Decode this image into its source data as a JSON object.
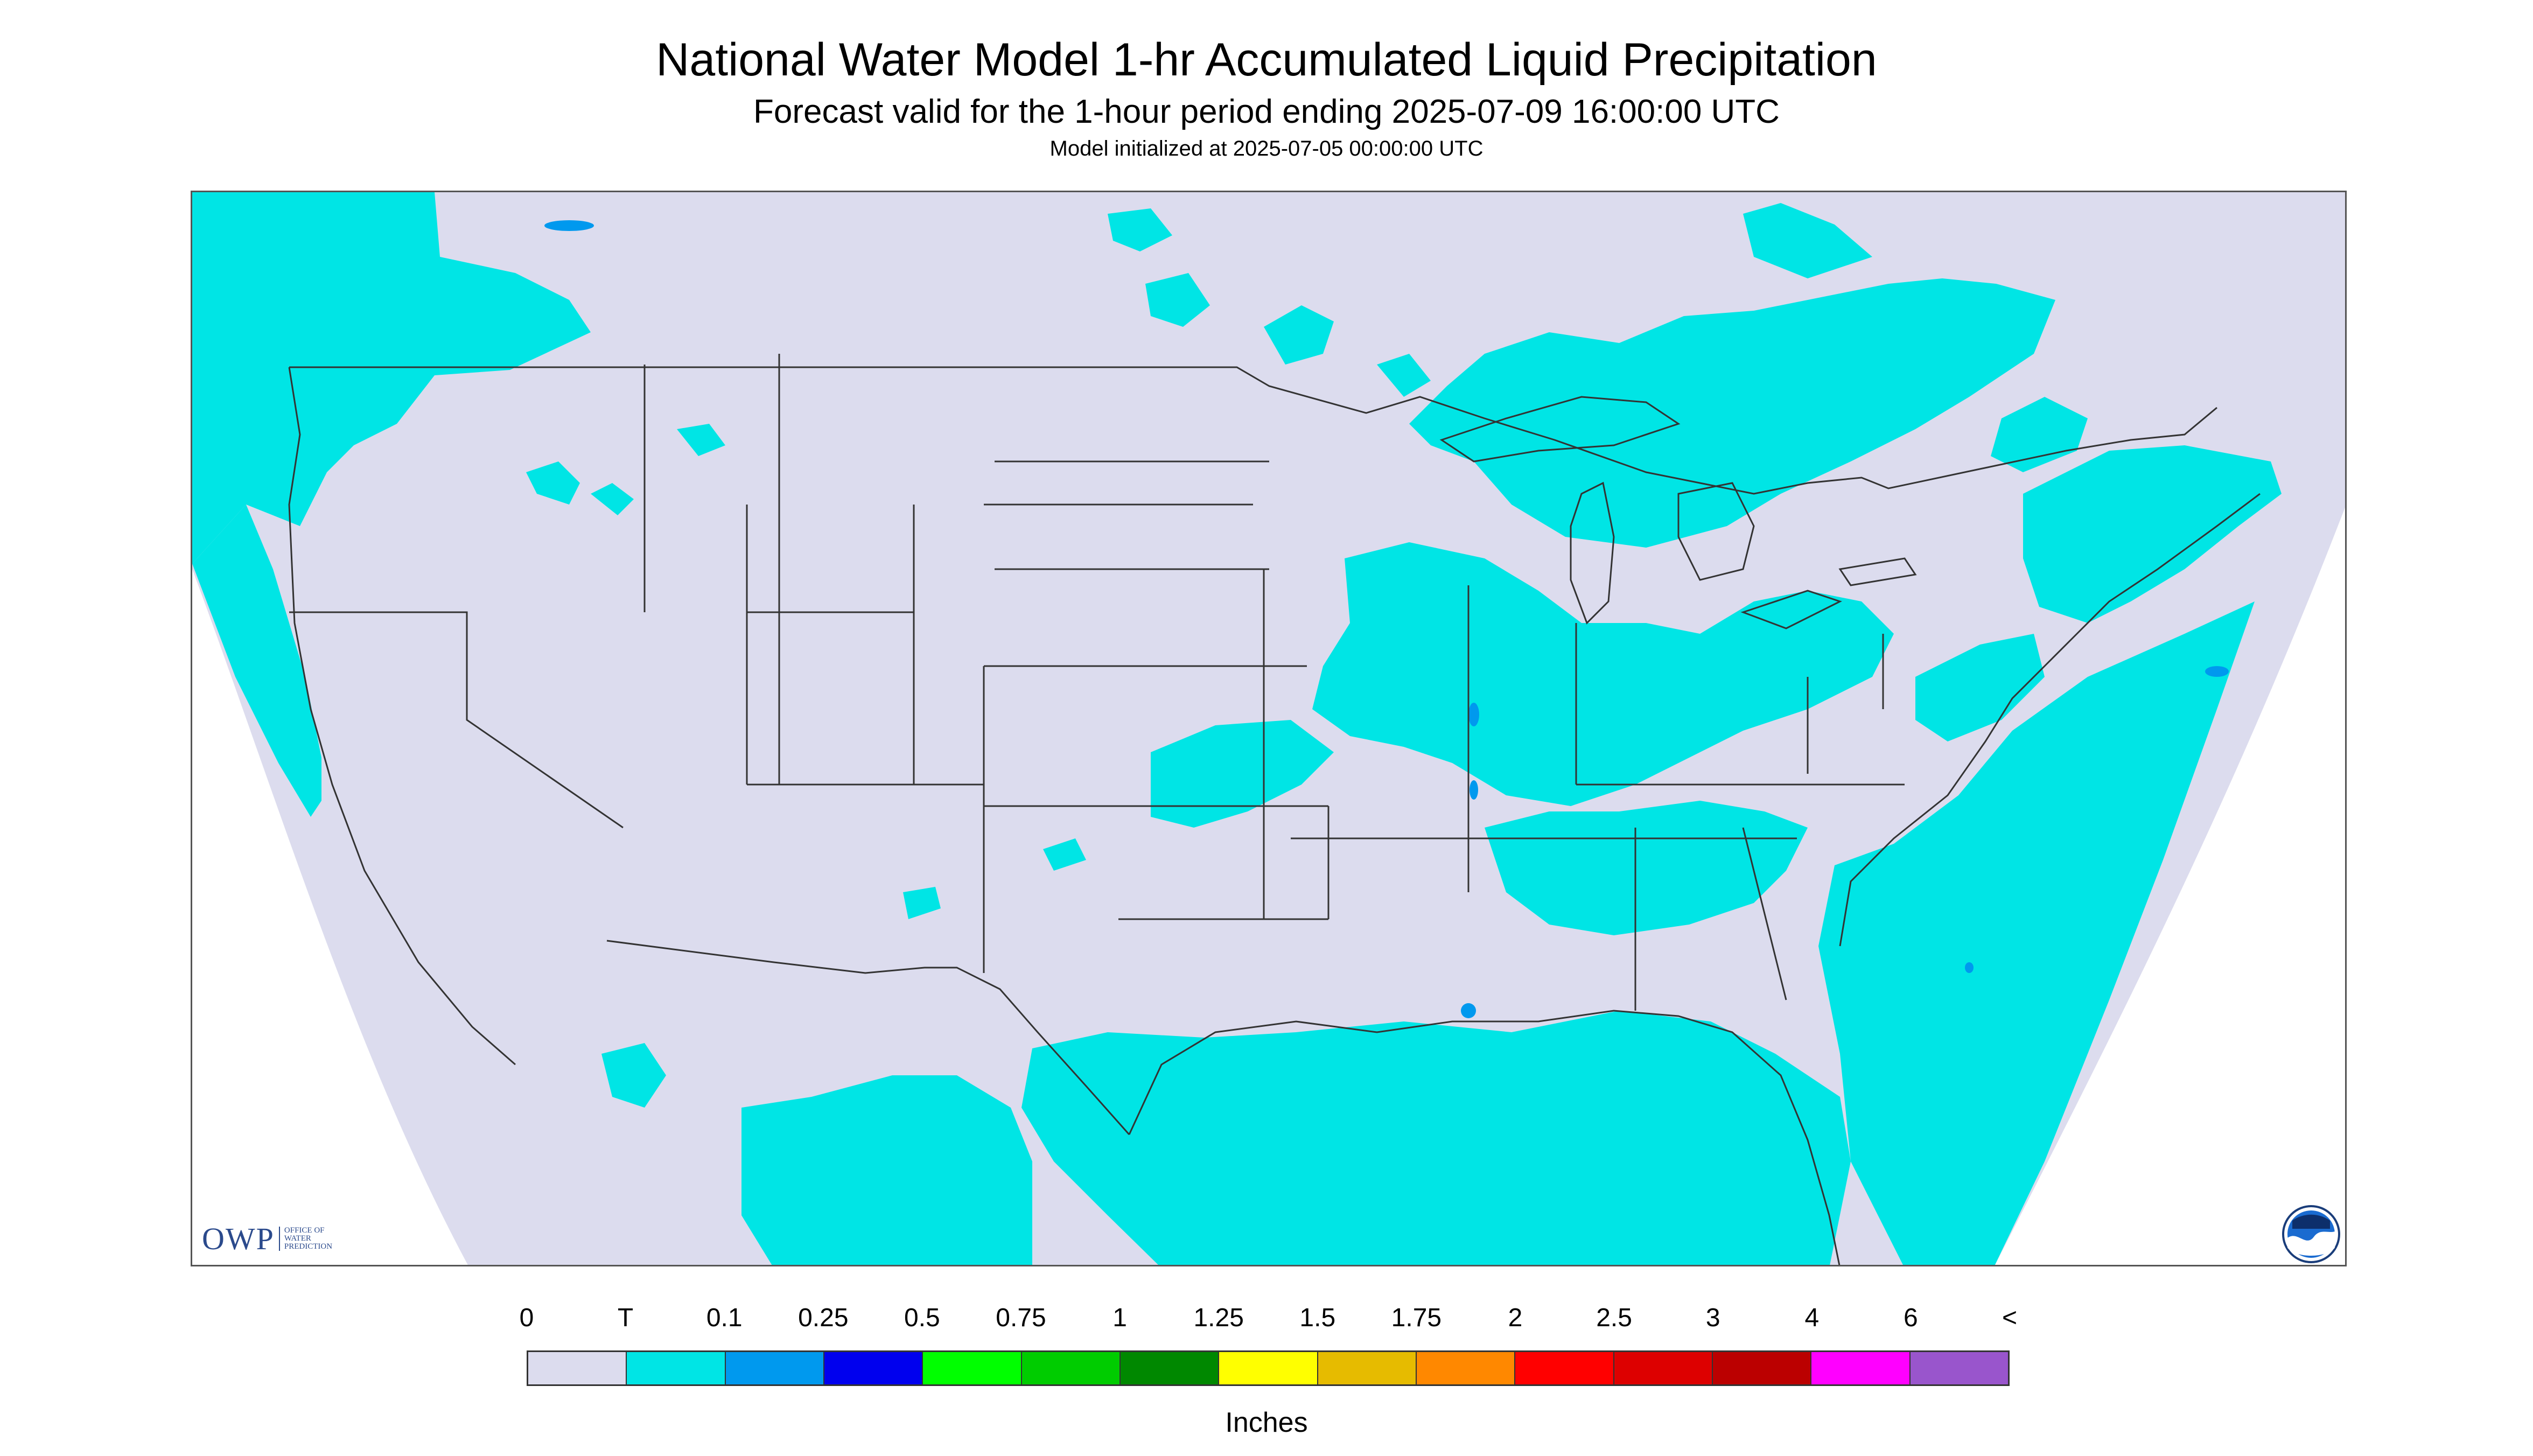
{
  "title": "National Water Model 1-hr Accumulated Liquid Precipitation",
  "subtitle": "Forecast valid for the 1-hour period ending 2025-07-09 16:00:00 UTC",
  "init_text": "Model initialized at 2025-07-05 00:00:00 UTC",
  "logos": {
    "owp": "OWP",
    "owp_sub": [
      "OFFICE OF",
      "WATER",
      "PREDICTION"
    ],
    "noaa": "NOAA"
  },
  "colors": {
    "no_precip": "#dcdcee",
    "trace": "#00e5e5",
    "light": "#0099ee",
    "outside": "#ffffff",
    "boundary": "#333333"
  },
  "legend": {
    "labels": [
      "0",
      "T",
      "0.1",
      "0.25",
      "0.5",
      "0.75",
      "1",
      "1.25",
      "1.5",
      "1.75",
      "2",
      "2.5",
      "3",
      "4",
      "6",
      "<"
    ],
    "colors": [
      "#dcdcee",
      "#00e5e5",
      "#0099ee",
      "#0000ee",
      "#00ff00",
      "#00cc00",
      "#008800",
      "#ffff00",
      "#e6bb00",
      "#ff8800",
      "#ff0000",
      "#dd0000",
      "#bb0000",
      "#ff00ff",
      "#9955cc"
    ],
    "units": "Inches"
  }
}
